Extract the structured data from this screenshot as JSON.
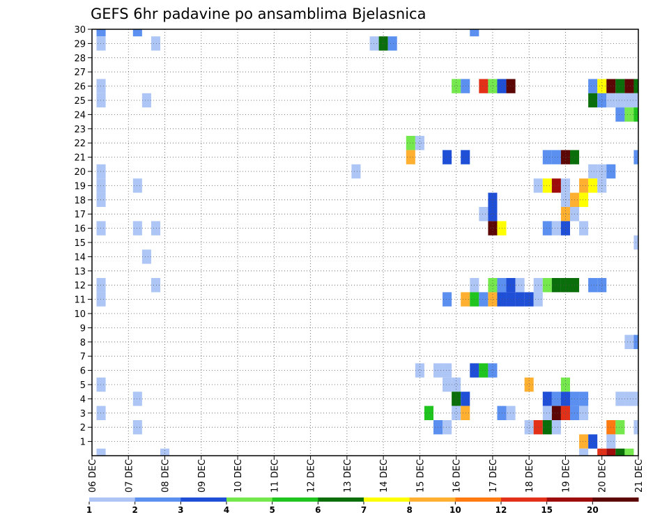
{
  "chart_data": {
    "type": "heatmap",
    "title": "GEFS 6hr padavine po ansamblima Bjelasnica",
    "xlabel": "",
    "ylabel": "",
    "x_tick_labels": [
      "06 DEC",
      "07 DEC",
      "08 DEC",
      "09 DEC",
      "10 DEC",
      "11 DEC",
      "12 DEC",
      "13 DEC",
      "14 DEC",
      "15 DEC",
      "16 DEC",
      "17 DEC",
      "18 DEC",
      "19 DEC",
      "20 DEC",
      "21 DEC"
    ],
    "y_tick_labels": [
      "1",
      "2",
      "3",
      "4",
      "5",
      "6",
      "7",
      "8",
      "9",
      "10",
      "11",
      "12",
      "13",
      "14",
      "15",
      "16",
      "17",
      "18",
      "19",
      "20",
      "21",
      "22",
      "23",
      "24",
      "25",
      "26",
      "27",
      "28",
      "29",
      "30"
    ],
    "x_range_steps": [
      0,
      60
    ],
    "y_range_members": [
      0,
      30
    ],
    "grid": true,
    "colorbar": {
      "labels": [
        "1",
        "2",
        "3",
        "4",
        "5",
        "6",
        "7",
        "8",
        "10",
        "12",
        "15",
        "20"
      ],
      "colors": [
        "#aec6f5",
        "#5b8ff0",
        "#1e4fd6",
        "#74e84c",
        "#1fc41f",
        "#0a6e0a",
        "#ffff00",
        "#ffb030",
        "#ff7a10",
        "#e33018",
        "#9e0c0c",
        "#5c0606"
      ]
    },
    "cells": [
      [
        30,
        1,
        1
      ],
      [
        30,
        5,
        1
      ],
      [
        30,
        42,
        1
      ],
      [
        29,
        1,
        0
      ],
      [
        29,
        7,
        0
      ],
      [
        29,
        31,
        0
      ],
      [
        29,
        32,
        5
      ],
      [
        29,
        33,
        1
      ],
      [
        26,
        1,
        0
      ],
      [
        26,
        40,
        3
      ],
      [
        26,
        41,
        1
      ],
      [
        26,
        43,
        9
      ],
      [
        26,
        44,
        3
      ],
      [
        26,
        45,
        2
      ],
      [
        26,
        46,
        11
      ],
      [
        26,
        55,
        1
      ],
      [
        26,
        56,
        6
      ],
      [
        26,
        57,
        11
      ],
      [
        26,
        58,
        5
      ],
      [
        26,
        59,
        11
      ],
      [
        26,
        60,
        5
      ],
      [
        25,
        1,
        0
      ],
      [
        25,
        6,
        0
      ],
      [
        25,
        55,
        5
      ],
      [
        25,
        56,
        1
      ],
      [
        25,
        57,
        0
      ],
      [
        25,
        58,
        0
      ],
      [
        25,
        59,
        0
      ],
      [
        25,
        60,
        0
      ],
      [
        24,
        58,
        1
      ],
      [
        24,
        59,
        3
      ],
      [
        24,
        60,
        4
      ],
      [
        22,
        35,
        3
      ],
      [
        22,
        36,
        0
      ],
      [
        21,
        35,
        7
      ],
      [
        21,
        39,
        2
      ],
      [
        21,
        41,
        2
      ],
      [
        21,
        50,
        1
      ],
      [
        21,
        51,
        1
      ],
      [
        21,
        52,
        11
      ],
      [
        21,
        53,
        5
      ],
      [
        21,
        60,
        1
      ],
      [
        20,
        1,
        0
      ],
      [
        20,
        29,
        0
      ],
      [
        20,
        55,
        0
      ],
      [
        20,
        56,
        0
      ],
      [
        20,
        57,
        1
      ],
      [
        19,
        1,
        0
      ],
      [
        19,
        5,
        0
      ],
      [
        19,
        49,
        0
      ],
      [
        19,
        50,
        6
      ],
      [
        19,
        51,
        10
      ],
      [
        19,
        52,
        0
      ],
      [
        19,
        54,
        7
      ],
      [
        19,
        55,
        6
      ],
      [
        19,
        56,
        0
      ],
      [
        18,
        1,
        0
      ],
      [
        18,
        44,
        2
      ],
      [
        18,
        52,
        0
      ],
      [
        18,
        53,
        7
      ],
      [
        18,
        54,
        6
      ],
      [
        17,
        43,
        0
      ],
      [
        17,
        44,
        2
      ],
      [
        17,
        52,
        7
      ],
      [
        17,
        53,
        0
      ],
      [
        16,
        1,
        0
      ],
      [
        16,
        5,
        0
      ],
      [
        16,
        7,
        0
      ],
      [
        16,
        44,
        11
      ],
      [
        16,
        45,
        6
      ],
      [
        16,
        50,
        1
      ],
      [
        16,
        51,
        0
      ],
      [
        16,
        52,
        2
      ],
      [
        16,
        54,
        0
      ],
      [
        15,
        60,
        0
      ],
      [
        14,
        6,
        0
      ],
      [
        12,
        1,
        0
      ],
      [
        12,
        7,
        0
      ],
      [
        12,
        42,
        0
      ],
      [
        12,
        44,
        3
      ],
      [
        12,
        45,
        1
      ],
      [
        12,
        46,
        2
      ],
      [
        12,
        47,
        0
      ],
      [
        12,
        49,
        0
      ],
      [
        12,
        50,
        3
      ],
      [
        12,
        51,
        5
      ],
      [
        12,
        52,
        5
      ],
      [
        12,
        53,
        5
      ],
      [
        12,
        55,
        1
      ],
      [
        12,
        56,
        1
      ],
      [
        11,
        1,
        0
      ],
      [
        11,
        39,
        1
      ],
      [
        11,
        41,
        7
      ],
      [
        11,
        42,
        4
      ],
      [
        11,
        43,
        1
      ],
      [
        11,
        44,
        7
      ],
      [
        11,
        45,
        2
      ],
      [
        11,
        46,
        2
      ],
      [
        11,
        47,
        2
      ],
      [
        11,
        48,
        2
      ],
      [
        11,
        49,
        0
      ],
      [
        8,
        59,
        0
      ],
      [
        8,
        60,
        1
      ],
      [
        6,
        36,
        0
      ],
      [
        6,
        38,
        0
      ],
      [
        6,
        39,
        0
      ],
      [
        6,
        42,
        2
      ],
      [
        6,
        43,
        4
      ],
      [
        6,
        44,
        1
      ],
      [
        5,
        1,
        0
      ],
      [
        5,
        39,
        0
      ],
      [
        5,
        40,
        0
      ],
      [
        5,
        48,
        7
      ],
      [
        5,
        52,
        3
      ],
      [
        4,
        5,
        0
      ],
      [
        4,
        40,
        5
      ],
      [
        4,
        41,
        2
      ],
      [
        4,
        50,
        2
      ],
      [
        4,
        51,
        1
      ],
      [
        4,
        52,
        2
      ],
      [
        4,
        53,
        1
      ],
      [
        4,
        54,
        1
      ],
      [
        4,
        58,
        0
      ],
      [
        4,
        59,
        0
      ],
      [
        4,
        60,
        0
      ],
      [
        3,
        1,
        0
      ],
      [
        3,
        37,
        4
      ],
      [
        3,
        40,
        0
      ],
      [
        3,
        41,
        7
      ],
      [
        3,
        45,
        1
      ],
      [
        3,
        46,
        0
      ],
      [
        3,
        50,
        0
      ],
      [
        3,
        51,
        11
      ],
      [
        3,
        52,
        9
      ],
      [
        3,
        53,
        1
      ],
      [
        3,
        54,
        0
      ],
      [
        2,
        5,
        0
      ],
      [
        2,
        38,
        1
      ],
      [
        2,
        39,
        0
      ],
      [
        2,
        48,
        0
      ],
      [
        2,
        49,
        9
      ],
      [
        2,
        50,
        5
      ],
      [
        2,
        51,
        0
      ],
      [
        2,
        57,
        8
      ],
      [
        2,
        58,
        3
      ],
      [
        2,
        60,
        0
      ],
      [
        1,
        54,
        7
      ],
      [
        1,
        55,
        2
      ],
      [
        1,
        57,
        0
      ],
      [
        0,
        1,
        0
      ],
      [
        0,
        8,
        0
      ],
      [
        0,
        54,
        0
      ],
      [
        0,
        56,
        9
      ],
      [
        0,
        57,
        10
      ],
      [
        0,
        58,
        5
      ],
      [
        0,
        59,
        3
      ]
    ]
  }
}
